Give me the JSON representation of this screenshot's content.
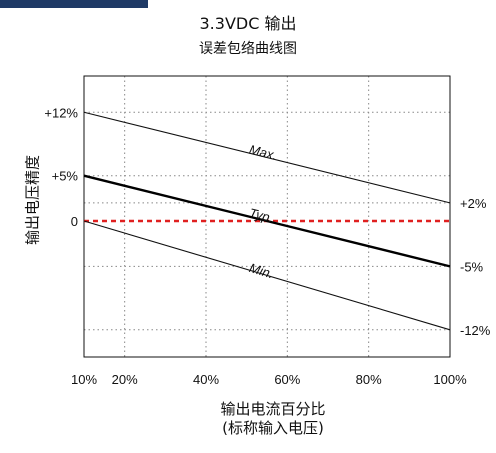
{
  "title": "3.3VDC 输出",
  "subtitle": "误差包络曲线图",
  "chart_data": {
    "type": "line",
    "x": [
      10,
      100
    ],
    "xticks": [
      "10%",
      "20%",
      "40%",
      "60%",
      "80%",
      "100%"
    ],
    "xtick_values": [
      10,
      20,
      40,
      60,
      80,
      100
    ],
    "xlabel_line1": "输出电流百分比",
    "xlabel_line2": "(标称输入电压)",
    "ylabel": "输出电压精度",
    "ylim": [
      -15,
      16
    ],
    "left_ticks": [
      {
        "label": "+12%",
        "value": 12
      },
      {
        "label": "+5%",
        "value": 5
      },
      {
        "label": "0",
        "value": 0
      }
    ],
    "right_ticks": [
      {
        "label": "+2%",
        "value": 2
      },
      {
        "label": "-5%",
        "value": -5
      },
      {
        "label": "-12%",
        "value": -12
      }
    ],
    "series": [
      {
        "name": "Max.",
        "values": [
          12,
          2
        ],
        "color": "#111111",
        "weight": "thin"
      },
      {
        "name": "Typ.",
        "values": [
          5,
          -5
        ],
        "color": "#000000",
        "weight": "bold"
      },
      {
        "name": "Min.",
        "values": [
          0,
          -12
        ],
        "color": "#111111",
        "weight": "thin"
      }
    ],
    "reference_line": {
      "value": 0,
      "color": "#e02020",
      "style": "dashed"
    },
    "grid": true
  },
  "colors": {
    "accent_bar": "#1f3a66"
  }
}
